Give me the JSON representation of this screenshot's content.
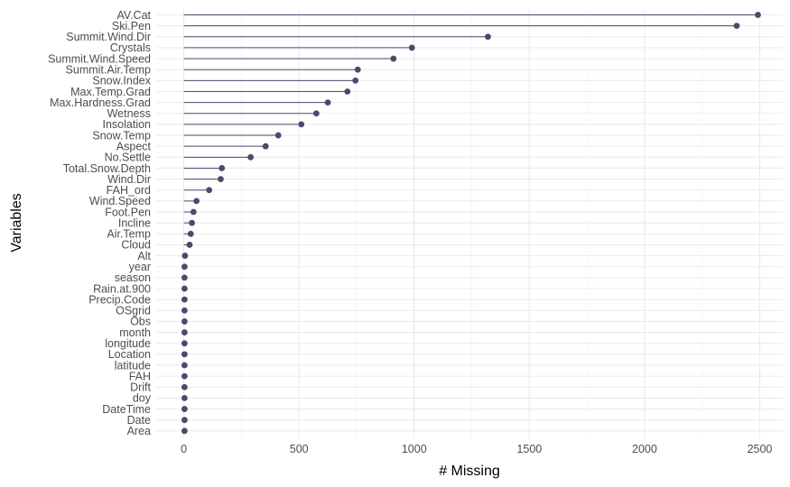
{
  "chart_data": {
    "type": "lollipop",
    "orientation": "horizontal",
    "title": "",
    "xlabel": "# Missing",
    "ylabel": "Variables",
    "xlim": [
      -120,
      2600
    ],
    "x_ticks": [
      0,
      500,
      1000,
      1500,
      2000,
      2500
    ],
    "grid": true,
    "color": "#4a4a6e",
    "categories": [
      "AV.Cat",
      "Ski.Pen",
      "Summit.Wind.Dir",
      "Crystals",
      "Summit.Wind.Speed",
      "Summit.Air.Temp",
      "Snow.Index",
      "Max.Temp.Grad",
      "Max.Hardness.Grad",
      "Wetness",
      "Insolation",
      "Snow.Temp",
      "Aspect",
      "No.Settle",
      "Total.Snow.Depth",
      "Wind.Dir",
      "FAH_ord",
      "Wind.Speed",
      "Foot.Pen",
      "Incline",
      "Air.Temp",
      "Cloud",
      "Alt",
      "year",
      "season",
      "Rain.at.900",
      "Precip.Code",
      "OSgrid",
      "Obs",
      "month",
      "longitude",
      "Location",
      "latitude",
      "FAH",
      "Drift",
      "doy",
      "DateTime",
      "Date",
      "Area"
    ],
    "values": [
      2492,
      2400,
      1320,
      990,
      910,
      755,
      745,
      710,
      625,
      575,
      510,
      410,
      355,
      290,
      165,
      160,
      110,
      55,
      42,
      35,
      30,
      25,
      5,
      3,
      3,
      3,
      3,
      3,
      3,
      3,
      3,
      3,
      3,
      3,
      3,
      3,
      3,
      3,
      3
    ]
  }
}
